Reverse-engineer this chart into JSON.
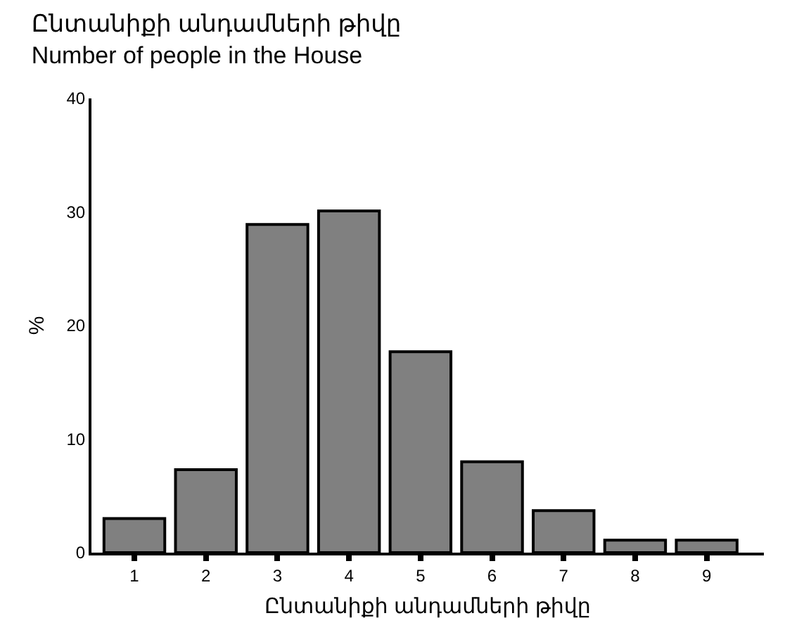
{
  "chart_data": {
    "type": "bar",
    "title": "Ընտանիքի անդամների թիվը",
    "subtitle": "Number of people in the House",
    "xlabel": "Ընտանիքի անդամների թիվը",
    "ylabel": "%",
    "categories": [
      "1",
      "2",
      "3",
      "4",
      "5",
      "6",
      "7",
      "8",
      "9"
    ],
    "values": [
      3.0,
      7.3,
      28.9,
      30.1,
      17.7,
      8.0,
      3.7,
      1.1,
      1.1
    ],
    "color": "#808080",
    "ylim": [
      0,
      40
    ],
    "yticks": [
      0,
      10,
      20,
      30,
      40
    ],
    "grid": false,
    "legend": false
  }
}
